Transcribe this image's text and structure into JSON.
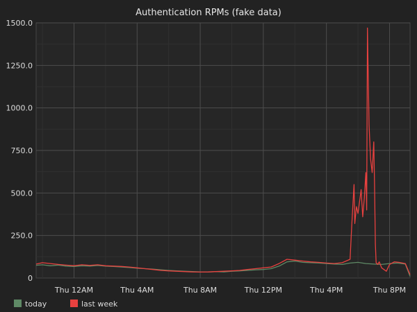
{
  "chart_data": {
    "type": "line",
    "title": "Authentication RPMs (fake data)",
    "xlabel": "",
    "ylabel": "",
    "ylim": [
      0,
      1500
    ],
    "xlim": [
      -2.4,
      21.3
    ],
    "x_ticks": [
      {
        "value": 0,
        "label": "Thu 12AM"
      },
      {
        "value": 4,
        "label": "Thu  4AM"
      },
      {
        "value": 8,
        "label": "Thu  8AM"
      },
      {
        "value": 12,
        "label": "Thu 12PM"
      },
      {
        "value": 16,
        "label": "Thu  4PM"
      },
      {
        "value": 20,
        "label": "Thu  8PM"
      }
    ],
    "y_ticks": [
      {
        "value": 0,
        "label": "0"
      },
      {
        "value": 250,
        "label": "250.0"
      },
      {
        "value": 500,
        "label": "500.0"
      },
      {
        "value": 750,
        "label": "750.0"
      },
      {
        "value": 1000,
        "label": "1000.0"
      },
      {
        "value": 1250,
        "label": "1250.0"
      },
      {
        "value": 1500,
        "label": "1500.0"
      }
    ],
    "grid": true,
    "legend": "bottom-left",
    "series": [
      {
        "name": "today",
        "color": "#5f8a66",
        "x": [
          -2.4,
          -2.0,
          -1.5,
          -1.0,
          -0.5,
          0.0,
          0.5,
          1.0,
          1.5,
          2.0,
          2.5,
          3.0,
          3.5,
          4.0,
          4.5,
          5.0,
          5.5,
          6.0,
          6.5,
          7.0,
          7.5,
          8.0,
          8.5,
          9.0,
          9.5,
          10.0,
          10.5,
          11.0,
          11.5,
          12.0,
          12.5,
          13.0,
          13.5,
          14.0,
          14.5,
          15.0,
          15.5,
          16.0,
          16.5,
          17.0,
          17.5,
          18.0,
          18.5,
          19.0,
          19.5,
          20.0,
          20.5,
          21.0,
          21.3
        ],
        "y": [
          75,
          78,
          72,
          76,
          70,
          68,
          72,
          70,
          74,
          70,
          68,
          65,
          62,
          58,
          55,
          52,
          48,
          45,
          42,
          40,
          38,
          36,
          35,
          38,
          36,
          40,
          42,
          45,
          48,
          50,
          55,
          70,
          95,
          100,
          92,
          90,
          88,
          85,
          82,
          80,
          88,
          92,
          85,
          82,
          80,
          85,
          88,
          82,
          10
        ]
      },
      {
        "name": "last week",
        "color": "#e8413f",
        "x": [
          -2.4,
          -2.0,
          -1.5,
          -1.0,
          -0.5,
          0.0,
          0.5,
          1.0,
          1.5,
          2.0,
          2.5,
          3.0,
          3.5,
          4.0,
          4.5,
          5.0,
          5.5,
          6.0,
          6.5,
          7.0,
          7.5,
          8.0,
          8.5,
          9.0,
          9.5,
          10.0,
          10.5,
          11.0,
          11.5,
          12.0,
          12.5,
          13.0,
          13.5,
          14.0,
          14.5,
          15.0,
          15.5,
          16.0,
          16.5,
          17.0,
          17.5,
          17.6,
          17.75,
          17.8,
          17.9,
          18.0,
          18.1,
          18.2,
          18.3,
          18.4,
          18.5,
          18.55,
          18.6,
          18.7,
          18.8,
          18.9,
          19.0,
          19.05,
          19.1,
          19.15,
          19.2,
          19.25,
          19.3,
          19.35,
          19.5,
          19.8,
          20.0,
          20.3,
          20.6,
          21.0,
          21.3
        ],
        "y": [
          82,
          90,
          85,
          80,
          76,
          72,
          78,
          74,
          78,
          72,
          70,
          68,
          65,
          60,
          55,
          50,
          45,
          42,
          40,
          38,
          36,
          35,
          36,
          38,
          40,
          42,
          45,
          50,
          55,
          60,
          65,
          85,
          110,
          105,
          100,
          95,
          92,
          88,
          85,
          90,
          110,
          300,
          550,
          320,
          420,
          380,
          450,
          520,
          360,
          470,
          620,
          400,
          1470,
          900,
          700,
          620,
          800,
          550,
          200,
          90,
          85,
          80,
          88,
          95,
          60,
          40,
          80,
          95,
          92,
          85,
          20
        ]
      }
    ]
  }
}
